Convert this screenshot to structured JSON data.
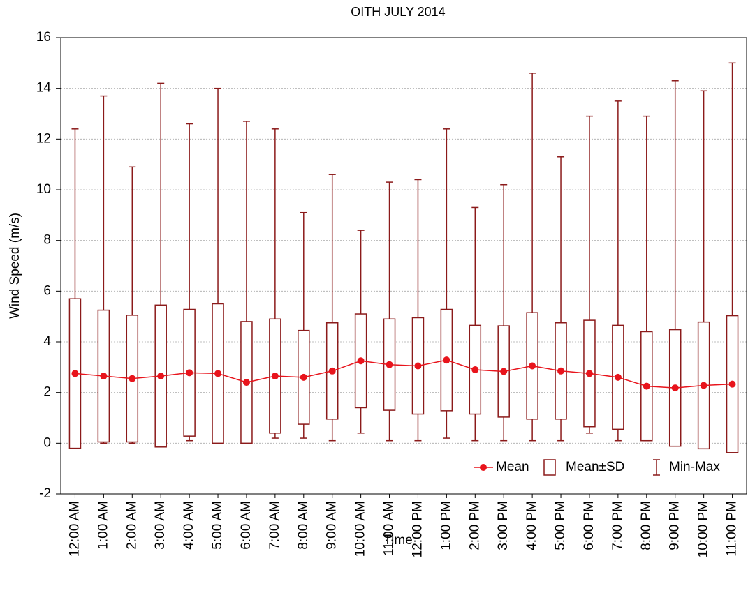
{
  "chart_data": {
    "type": "box",
    "title": "OITH JULY 2014",
    "x_label": "Time",
    "y_label": "Wind Speed (m/s)",
    "categories": [
      "12:00 AM",
      "1:00 AM",
      "2:00 AM",
      "3:00 AM",
      "4:00 AM",
      "5:00 AM",
      "6:00 AM",
      "7:00 AM",
      "8:00 AM",
      "9:00 AM",
      "10:00 AM",
      "11:00 AM",
      "12:00 PM",
      "1:00 PM",
      "2:00 PM",
      "3:00 PM",
      "4:00 PM",
      "5:00 PM",
      "6:00 PM",
      "7:00 PM",
      "8:00 PM",
      "9:00 PM",
      "10:00 PM",
      "11:00 PM"
    ],
    "mean": [
      2.75,
      2.65,
      2.55,
      2.65,
      2.78,
      2.75,
      2.4,
      2.65,
      2.6,
      2.85,
      3.25,
      3.1,
      3.05,
      3.28,
      2.9,
      2.83,
      3.05,
      2.85,
      2.75,
      2.6,
      2.25,
      2.18,
      2.28,
      2.33
    ],
    "sd": [
      2.95,
      2.6,
      2.5,
      2.8,
      2.5,
      2.75,
      2.4,
      2.25,
      1.85,
      1.9,
      1.85,
      1.8,
      1.9,
      2.0,
      1.75,
      1.8,
      2.1,
      1.9,
      2.1,
      2.05,
      2.15,
      2.3,
      2.5,
      2.7
    ],
    "min": [
      0,
      0,
      0,
      0,
      0.1,
      0,
      0,
      0.2,
      0.2,
      0.1,
      0.4,
      0.1,
      0.1,
      0.2,
      0.1,
      0.1,
      0.1,
      0.1,
      0.4,
      0.1,
      0.1,
      0,
      0,
      0
    ],
    "max": [
      12.4,
      13.7,
      10.9,
      14.2,
      12.6,
      14.0,
      12.7,
      12.4,
      9.1,
      10.6,
      8.4,
      10.3,
      10.4,
      12.4,
      9.3,
      10.2,
      14.6,
      11.3,
      12.9,
      13.5,
      12.9,
      14.3,
      13.9,
      15.0
    ],
    "legend": [
      "Mean",
      "Mean±SD",
      "Min-Max"
    ],
    "box_color": "#8b1a1a",
    "mean_color": "#e8141c",
    "ylim": [
      -2,
      16
    ],
    "yticks": [
      -2,
      0,
      2,
      4,
      6,
      8,
      10,
      12,
      14,
      16
    ],
    "grid": true
  }
}
